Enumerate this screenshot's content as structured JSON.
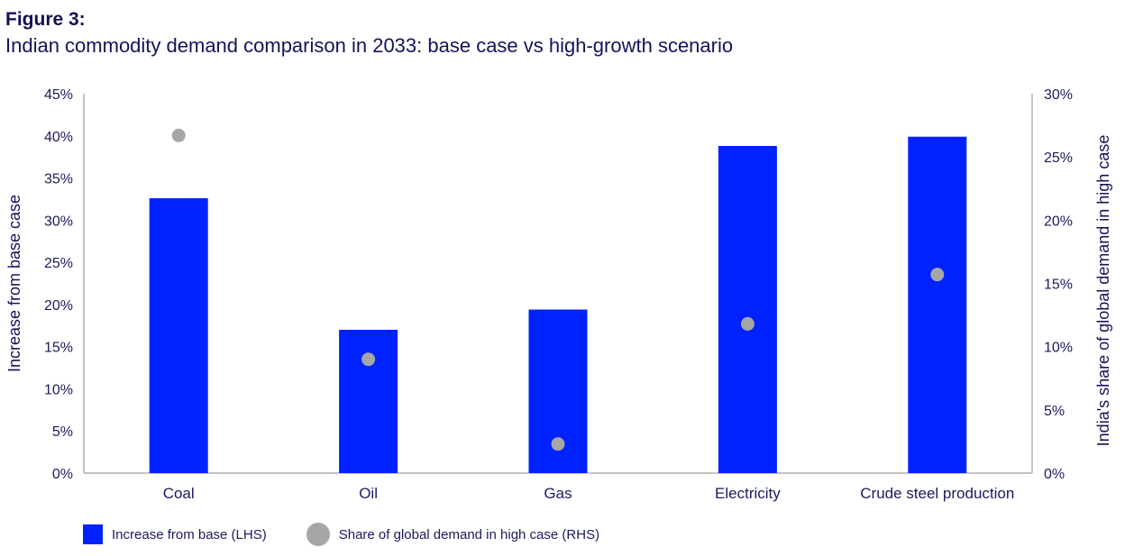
{
  "header": {
    "figure_label": "Figure 3:",
    "title": "Indian commodity demand comparison in 2033: base case vs high-growth scenario"
  },
  "legend": {
    "bar_label": "Increase from base (LHS)",
    "dot_label": "Share of global demand in high case (RHS)"
  },
  "colors": {
    "bar": "#0022ff",
    "dot": "#a6a6a6",
    "axis": "#b0b0b0",
    "text": "#1b1b5e"
  },
  "chart_data": {
    "type": "bar",
    "title": "Indian commodity demand comparison in 2033: base case vs high-growth scenario",
    "categories": [
      "Coal",
      "Oil",
      "Gas",
      "Electricity",
      "Crude steel production"
    ],
    "series": [
      {
        "name": "Increase from base (LHS)",
        "type": "bar",
        "axis": "left",
        "values": [
          32.6,
          17.0,
          19.4,
          38.8,
          39.9
        ]
      },
      {
        "name": "Share of global demand in high case (RHS)",
        "type": "scatter",
        "axis": "right",
        "values": [
          26.7,
          9.0,
          2.3,
          11.8,
          15.7
        ]
      }
    ],
    "ylabel": "Increase from base case",
    "ylabel_right": "India's share of global demand in high case",
    "ylim": [
      0,
      45
    ],
    "ylim_right": [
      0,
      30
    ],
    "yticks": [
      "0%",
      "5%",
      "10%",
      "15%",
      "20%",
      "25%",
      "30%",
      "35%",
      "40%",
      "45%"
    ],
    "yticks_right": [
      "0%",
      "5%",
      "10%",
      "15%",
      "20%",
      "25%",
      "30%"
    ],
    "grid": false,
    "legend_position": "bottom-left"
  }
}
